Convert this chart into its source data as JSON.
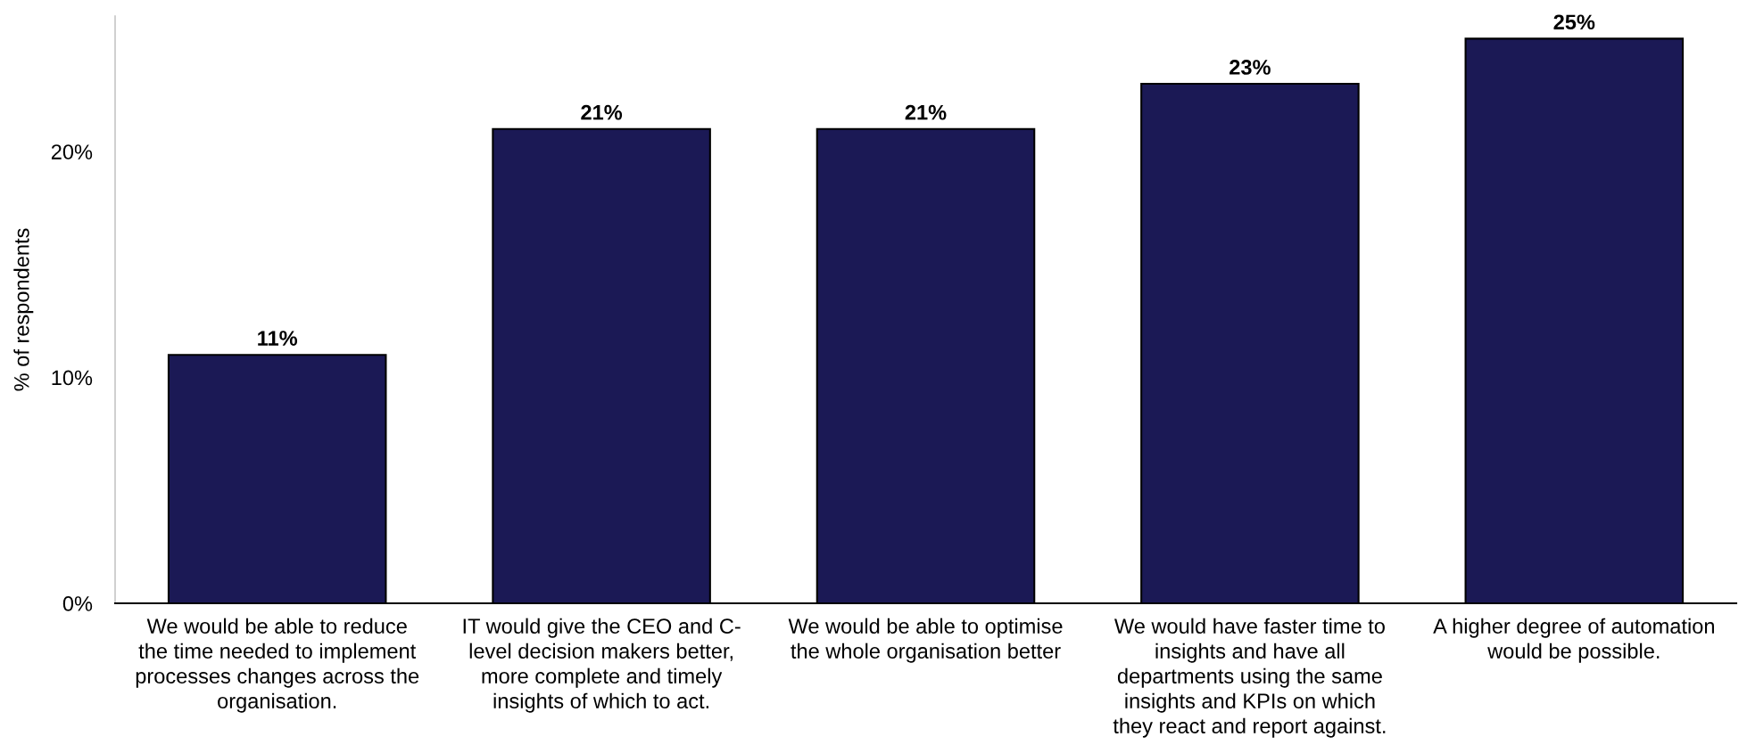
{
  "chart_data": {
    "type": "bar",
    "ylabel": "% of respondents",
    "categories": [
      "We would be able to reduce\nthe time needed to implement\nprocesses changes across the\norganisation.",
      "IT would give the CEO and C-\nlevel decision makers better,\nmore complete and timely\ninsights of which to act.",
      "We would be able to optimise\nthe whole organisation better",
      "We would have faster time to\ninsights and have all\ndepartments using the same\ninsights and KPIs on which\nthey react and report against.",
      "A higher degree of automation\nwould be possible."
    ],
    "values": [
      11,
      21,
      21,
      23,
      25
    ],
    "value_labels": [
      "11%",
      "21%",
      "21%",
      "23%",
      "25%"
    ],
    "color": "#1b1955",
    "ylim": [
      0,
      26
    ],
    "yticks": [
      {
        "value": 0,
        "label": "0%"
      },
      {
        "value": 10,
        "label": "10%"
      },
      {
        "value": 20,
        "label": "20%"
      }
    ],
    "grid": false,
    "legend": false
  }
}
